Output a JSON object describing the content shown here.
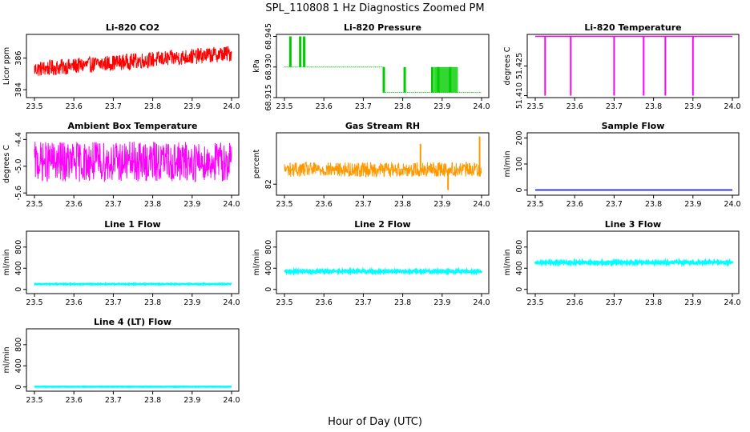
{
  "title": "SPL_110808  1 Hz Diagnostics Zoomed PM",
  "xlabel": "Hour of Day (UTC)",
  "chart_data": [
    {
      "type": "line",
      "title": "Li-820 CO2",
      "ylabel": "Licor ppm",
      "color": "#ff0000",
      "xlim": [
        23.5,
        24.0
      ],
      "ylim": [
        383.5,
        387.5
      ],
      "xticks": [
        "23.5",
        "23.6",
        "23.7",
        "23.8",
        "23.9",
        "24.0"
      ],
      "yticks": [
        384,
        386
      ],
      "trend": [
        [
          23.5,
          385.3
        ],
        [
          24.0,
          386.3
        ]
      ],
      "noise": 0.5,
      "spikes": []
    },
    {
      "type": "line",
      "title": "Li-820 Pressure",
      "ylabel": "kPa",
      "color": "#00cc00",
      "xlim": [
        23.5,
        24.0
      ],
      "ylim": [
        68.915,
        68.946
      ],
      "xticks": [
        "23.5",
        "23.6",
        "23.7",
        "23.8",
        "23.9",
        "24.0"
      ],
      "yticks": [
        "68.915",
        "68.930",
        "68.945"
      ],
      "levels": [
        [
          23.5,
          68.93
        ],
        [
          23.75,
          68.93
        ],
        [
          23.75,
          68.9175
        ],
        [
          24.0,
          68.9175
        ]
      ],
      "noise": 0,
      "spikes": [
        [
          23.515,
          68.945
        ],
        [
          23.54,
          68.945
        ],
        [
          23.55,
          68.945
        ],
        [
          23.752,
          68.9175
        ],
        [
          23.805,
          68.9175
        ],
        [
          23.875,
          68.9175
        ],
        [
          23.89,
          68.9175
        ],
        [
          23.92,
          68.9175
        ]
      ]
    },
    {
      "type": "line",
      "title": "Li-820 Temperature",
      "ylabel": "degrees C",
      "color": "#ff00ff",
      "xlim": [
        23.5,
        24.0
      ],
      "ylim": [
        51.409,
        51.441
      ],
      "xticks": [
        "23.5",
        "23.6",
        "23.7",
        "23.8",
        "23.9",
        "24.0"
      ],
      "yticks": [
        "51.410",
        "51.425"
      ],
      "trend": [
        [
          23.5,
          51.44
        ],
        [
          24.0,
          51.44
        ]
      ],
      "noise": 0,
      "spikes": [
        [
          23.525,
          51.41
        ],
        [
          23.59,
          51.41
        ],
        [
          23.7,
          51.41
        ],
        [
          23.775,
          51.41
        ],
        [
          23.83,
          51.41
        ],
        [
          23.9,
          51.41
        ]
      ]
    },
    {
      "type": "line",
      "title": "Ambient Box Temperature",
      "ylabel": "degrees C",
      "color": "#ff00ff",
      "xlim": [
        23.5,
        24.0
      ],
      "ylim": [
        -5.65,
        -4.25
      ],
      "xticks": [
        "23.5",
        "23.6",
        "23.7",
        "23.8",
        "23.9",
        "24.0"
      ],
      "yticks": [
        "-5.6",
        "-5.0",
        "-4.4"
      ],
      "trend": [
        [
          23.5,
          -4.9
        ],
        [
          24.0,
          -4.9
        ]
      ],
      "noise": 0.45,
      "spikes": []
    },
    {
      "type": "line",
      "title": "Gas Stream RH",
      "ylabel": "percent",
      "color": "#ff9900",
      "xlim": [
        23.5,
        24.0
      ],
      "ylim": [
        80.5,
        89
      ],
      "xticks": [
        "23.5",
        "23.6",
        "23.7",
        "23.8",
        "23.9",
        "24.0"
      ],
      "yticks": [
        82
      ],
      "trend": [
        [
          23.5,
          84
        ],
        [
          24.0,
          84
        ]
      ],
      "noise": 1.0,
      "spikes": [
        [
          23.845,
          87.5
        ],
        [
          23.995,
          88.5
        ],
        [
          23.915,
          81.2
        ]
      ]
    },
    {
      "type": "line",
      "title": "Sample Flow",
      "ylabel": "ml/min",
      "color": "#0000cc",
      "xlim": [
        23.5,
        24.0
      ],
      "ylim": [
        -20,
        220
      ],
      "xticks": [
        "23.5",
        "23.6",
        "23.7",
        "23.8",
        "23.9",
        "24.0"
      ],
      "yticks": [
        0,
        100,
        200
      ],
      "trend": [
        [
          23.5,
          0
        ],
        [
          24.0,
          0
        ]
      ],
      "noise": 0,
      "spikes": []
    },
    {
      "type": "line",
      "title": "Line 1 Flow",
      "ylabel": "ml/min",
      "color": "#00ffff",
      "xlim": [
        23.5,
        24.0
      ],
      "ylim": [
        -80,
        1100
      ],
      "xticks": [
        "23.5",
        "23.6",
        "23.7",
        "23.8",
        "23.9",
        "24.0"
      ],
      "yticks": [
        0,
        400,
        800
      ],
      "trend": [
        [
          23.5,
          100
        ],
        [
          24.0,
          100
        ]
      ],
      "noise": 6,
      "spikes": []
    },
    {
      "type": "line",
      "title": "Line 2 Flow",
      "ylabel": "ml/min",
      "color": "#00ffff",
      "xlim": [
        23.5,
        24.0
      ],
      "ylim": [
        -80,
        1100
      ],
      "xticks": [
        "23.5",
        "23.6",
        "23.7",
        "23.8",
        "23.9",
        "24.0"
      ],
      "yticks": [
        0,
        400,
        800
      ],
      "trend": [
        [
          23.5,
          340
        ],
        [
          24.0,
          340
        ]
      ],
      "noise": 18,
      "spikes": []
    },
    {
      "type": "line",
      "title": "Line 3 Flow",
      "ylabel": "ml/min",
      "color": "#00ffff",
      "xlim": [
        23.5,
        24.0
      ],
      "ylim": [
        -80,
        1100
      ],
      "xticks": [
        "23.5",
        "23.6",
        "23.7",
        "23.8",
        "23.9",
        "24.0"
      ],
      "yticks": [
        0,
        400,
        800
      ],
      "trend": [
        [
          23.5,
          510
        ],
        [
          24.0,
          510
        ]
      ],
      "noise": 22,
      "spikes": []
    },
    {
      "type": "line",
      "title": "Line 4 (LT) Flow",
      "ylabel": "ml/min",
      "color": "#00ffff",
      "xlim": [
        23.5,
        24.0
      ],
      "ylim": [
        -80,
        1100
      ],
      "xticks": [
        "23.5",
        "23.6",
        "23.7",
        "23.8",
        "23.9",
        "24.0"
      ],
      "yticks": [
        0,
        400,
        800
      ],
      "trend": [
        [
          23.5,
          5
        ],
        [
          24.0,
          5
        ]
      ],
      "noise": 3,
      "spikes": []
    }
  ]
}
